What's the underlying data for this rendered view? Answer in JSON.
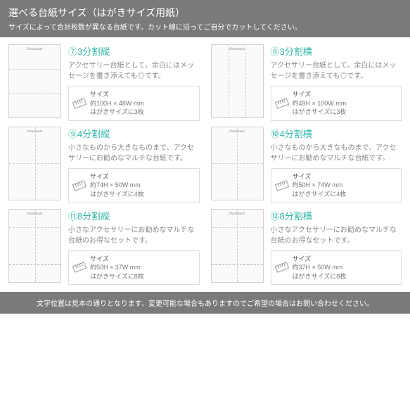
{
  "header": {
    "title": "選べる台紙サイズ（はがきサイズ用紙）",
    "subtitle": "サイズによって合計枚数が異なる台紙です。カット線に沿ってご自分でカットしてください。"
  },
  "accent_color": "#2fb5a6",
  "items": [
    {
      "num": "⑦",
      "name": "3分割縦",
      "thumb_class": "thumb-3v",
      "desc": "アクセサリー台紙として。余白にはメッセージを書き添えても◎です。",
      "size": "約100H × 48W mm",
      "count": "はがきサイズに3枚"
    },
    {
      "num": "⑧",
      "name": "3分割横",
      "thumb_class": "thumb-3h",
      "desc": "アクセサリー台紙として。余白にはメッセージを書き添えても◎です。",
      "size": "約49H × 100W mm",
      "count": "はがきサイズに3枚"
    },
    {
      "num": "⑨",
      "name": "4分割縦",
      "thumb_class": "thumb-4v",
      "desc": "小さなものから大きなものまで、アクセサリーにお勧めなマルチな台紙です。",
      "size": "約74H × 50W mm",
      "count": "はがきサイズに4枚"
    },
    {
      "num": "⑩",
      "name": "4分割横",
      "thumb_class": "thumb-4v",
      "desc": "小さなものから大きなものまで、アクセサリーにお勧めなマルチな台紙です。",
      "size": "約50H × 74W mm",
      "count": "はがきサイズに4枚"
    },
    {
      "num": "⑪",
      "name": "8分割縦",
      "thumb_class": "thumb-8",
      "desc": "小さなアクセサリーにお勧めなマルチな台紙のお得なセットです。",
      "size": "約50H × 37W mm",
      "count": "はがきサイズに8枚"
    },
    {
      "num": "⑫",
      "name": "8分割横",
      "thumb_class": "thumb-8",
      "desc": "小さなアクセサリーにお勧めなマルチな台紙のお得なセットです。",
      "size": "約37H × 50W mm",
      "count": "はがきサイズに8枚"
    }
  ],
  "size_label": "サイズ",
  "footer": "文字位置は見本の通りとなります、変更可能な場合もありますのでご希望の場合はお問い合わせください。"
}
